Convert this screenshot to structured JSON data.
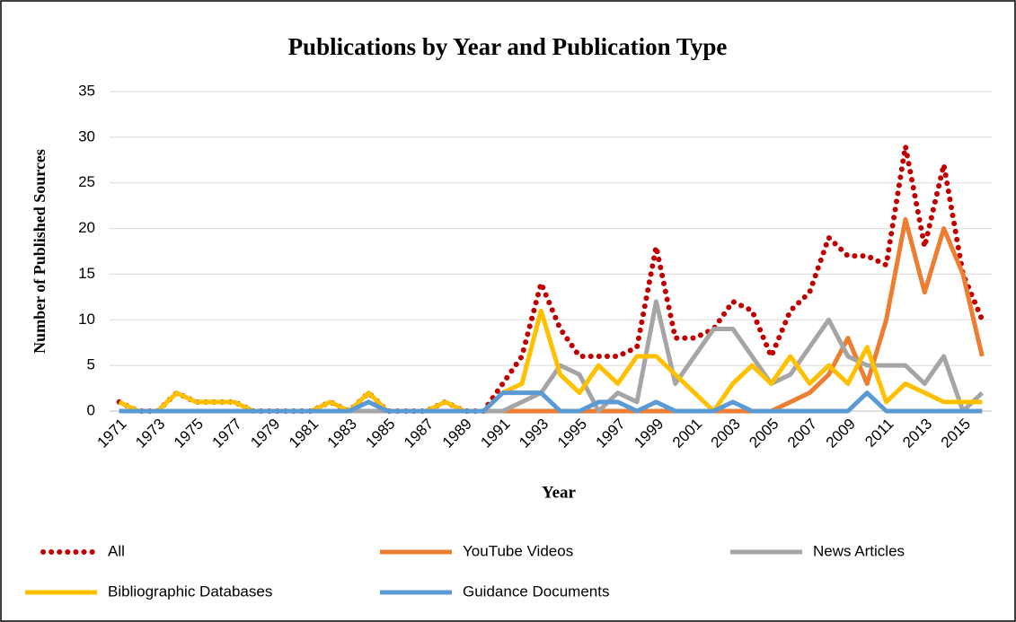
{
  "chart_data": {
    "type": "line",
    "title": "Publications by Year and Publication Type",
    "x_label": "Year",
    "y_label": "Number of Published Sources",
    "categories": [
      "1971",
      null,
      "1973",
      null,
      "1975",
      null,
      "1977",
      null,
      "1979",
      null,
      "1981",
      null,
      "1983",
      null,
      "1985",
      null,
      "1987",
      null,
      "1989",
      null,
      "1991",
      null,
      "1993",
      null,
      "1995",
      null,
      "1997",
      null,
      "1999",
      null,
      "2001",
      null,
      "2003",
      null,
      "2005",
      null,
      "2007",
      null,
      "2009",
      null,
      "2011",
      null,
      "2013",
      null,
      "2015",
      null
    ],
    "series": [
      {
        "name": "All",
        "color": "#c00000",
        "dotted": true,
        "values": [
          1,
          0,
          0,
          2,
          1,
          1,
          1,
          0,
          0,
          0,
          0,
          1,
          0,
          2,
          0,
          0,
          0,
          1,
          0,
          0,
          3,
          6,
          14,
          9,
          6,
          6,
          6,
          7,
          18,
          8,
          8,
          9,
          12,
          11,
          6,
          11,
          13,
          19,
          17,
          17,
          16,
          29,
          18,
          27,
          15,
          10
        ]
      },
      {
        "name": "YouTube Videos",
        "color": "#ed7d31",
        "values": [
          0,
          0,
          0,
          0,
          0,
          0,
          0,
          0,
          0,
          0,
          0,
          0,
          0,
          0,
          0,
          0,
          0,
          0,
          0,
          0,
          0,
          0,
          0,
          0,
          0,
          0,
          0,
          0,
          0,
          0,
          0,
          0,
          0,
          0,
          0,
          1,
          2,
          4,
          8,
          3,
          10,
          21,
          13,
          20,
          15,
          6
        ]
      },
      {
        "name": "News Articles",
        "color": "#a5a5a5",
        "values": [
          0,
          0,
          0,
          0,
          0,
          0,
          0,
          0,
          0,
          0,
          0,
          0,
          0,
          0,
          0,
          0,
          0,
          0,
          0,
          0,
          0,
          1,
          2,
          5,
          4,
          0,
          2,
          1,
          12,
          3,
          6,
          9,
          9,
          6,
          3,
          4,
          7,
          10,
          6,
          5,
          5,
          5,
          3,
          6,
          0,
          2
        ]
      },
      {
        "name": "Bibliographic Databases",
        "color": "#ffc000",
        "values": [
          1,
          0,
          0,
          2,
          1,
          1,
          1,
          0,
          0,
          0,
          0,
          1,
          0,
          2,
          0,
          0,
          0,
          1,
          0,
          0,
          2,
          3,
          11,
          4,
          2,
          5,
          3,
          6,
          6,
          4,
          2,
          0,
          3,
          5,
          3,
          6,
          3,
          5,
          3,
          7,
          1,
          3,
          2,
          1,
          1,
          1
        ]
      },
      {
        "name": "Guidance Documents",
        "color": "#5b9bd5",
        "values": [
          0,
          0,
          0,
          0,
          0,
          0,
          0,
          0,
          0,
          0,
          0,
          0,
          0,
          1,
          0,
          0,
          0,
          0,
          0,
          0,
          2,
          2,
          2,
          0,
          0,
          1,
          1,
          0,
          1,
          0,
          0,
          0,
          1,
          0,
          0,
          0,
          0,
          0,
          0,
          2,
          0,
          0,
          0,
          0,
          0,
          0
        ]
      }
    ],
    "ylim": [
      0,
      35
    ],
    "yticks": [
      0,
      5,
      10,
      15,
      20,
      25,
      30,
      35
    ],
    "grid": true,
    "legend": "bottom"
  }
}
